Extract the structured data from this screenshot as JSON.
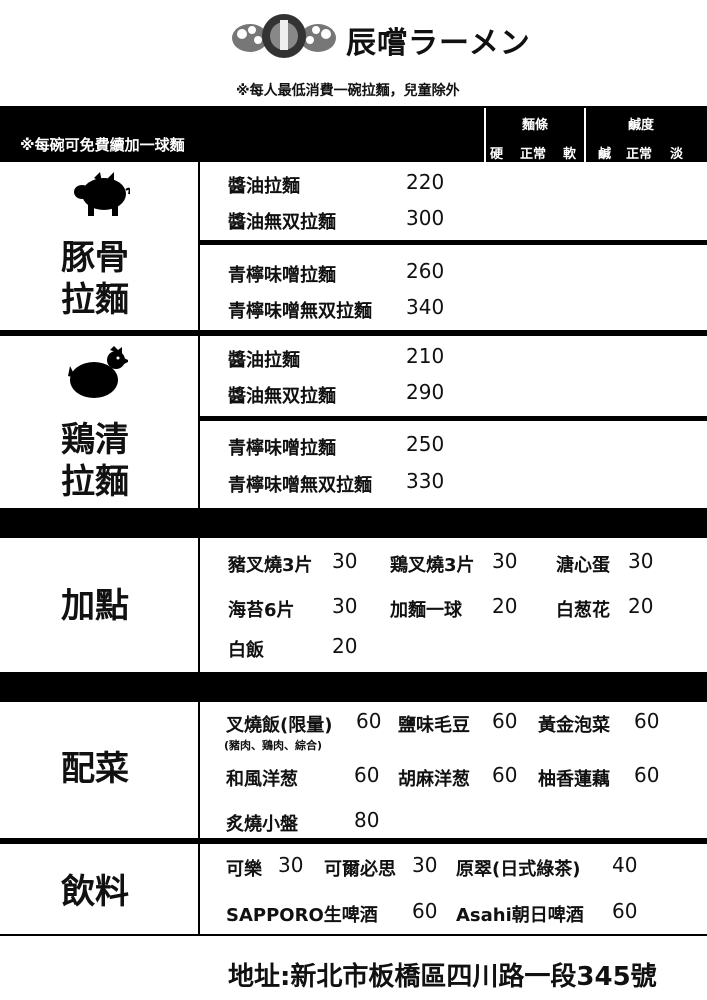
{
  "brand": "辰嚐ラーメン",
  "top_note": "※每人最低消費一碗拉麵，兒童除外",
  "refill_note": "※每碗可免費續加一球麵",
  "noodle_header": {
    "title": "麵條",
    "options": [
      "硬",
      "正常",
      "軟"
    ]
  },
  "salt_header": {
    "title": "鹹度",
    "options": [
      "鹹",
      "正常",
      "淡"
    ]
  },
  "tonkotsu": {
    "title_line1": "豚骨",
    "title_line2": "拉麵",
    "icon": "pig-icon",
    "items": [
      {
        "name": "醬油拉麵",
        "price": "220"
      },
      {
        "name": "醬油無双拉麵",
        "price": "300"
      },
      {
        "name": "青檸味噌拉麵",
        "price": "260"
      },
      {
        "name": "青檸味噌無双拉麵",
        "price": "340"
      }
    ]
  },
  "chicken": {
    "title_line1": "鶏清",
    "title_line2": "拉麵",
    "icon": "chicken-icon",
    "items": [
      {
        "name": "醬油拉麵",
        "price": "210"
      },
      {
        "name": "醬油無双拉麵",
        "price": "290"
      },
      {
        "name": "青檸味噌拉麵",
        "price": "250"
      },
      {
        "name": "青檸味噌無双拉麵",
        "price": "330"
      }
    ]
  },
  "addons": {
    "title": "加點",
    "items": [
      {
        "name": "豬叉燒3片",
        "price": "30"
      },
      {
        "name": "鶏叉燒3片",
        "price": "30"
      },
      {
        "name": "溏心蛋",
        "price": "30"
      },
      {
        "name": "海苔6片",
        "price": "30"
      },
      {
        "name": "加麵一球",
        "price": "20"
      },
      {
        "name": "白葱花",
        "price": "20"
      },
      {
        "name": "白飯",
        "price": "20"
      }
    ]
  },
  "sides": {
    "title": "配菜",
    "items": [
      {
        "name": "叉燒飯(限量)",
        "price": "60"
      },
      {
        "name": "鹽味毛豆",
        "price": "60"
      },
      {
        "name": "黃金泡菜",
        "price": "60"
      },
      {
        "name": "和風洋葱",
        "price": "60"
      },
      {
        "name": "胡麻洋葱",
        "price": "60"
      },
      {
        "name": "柚香蓮藕",
        "price": "60"
      },
      {
        "name": "炙燒小盤",
        "price": "80"
      }
    ],
    "rice_note": "(豬肉、鶏肉、綜合)"
  },
  "drinks": {
    "title": "飲料",
    "items": [
      {
        "name": "可樂",
        "price": "30"
      },
      {
        "name": "可爾必思",
        "price": "30"
      },
      {
        "name": "原翠(日式綠茶)",
        "price": "40"
      },
      {
        "name": "SAPPORO生啤酒",
        "price": "60"
      },
      {
        "name": "Asahi朝日啤酒",
        "price": "60"
      }
    ]
  },
  "address": "地址:新北市板橋區四川路一段345號"
}
